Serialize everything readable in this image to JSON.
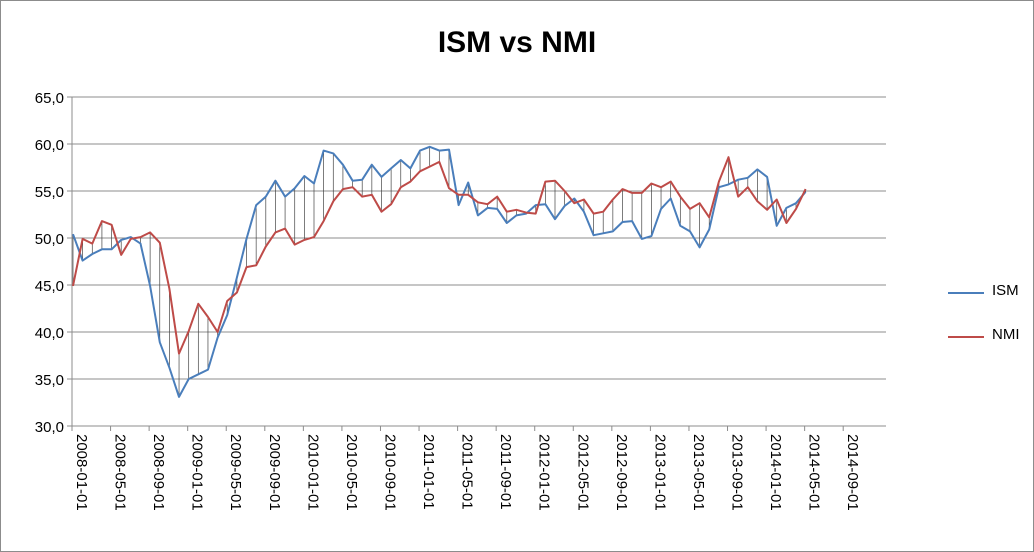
{
  "title": "ISM vs NMI",
  "chart_data": {
    "type": "line",
    "title": "ISM vs NMI",
    "xlabel": "",
    "ylabel": "",
    "ylim": [
      30,
      65
    ],
    "y_ticks": [
      "30,0",
      "35,0",
      "40,0",
      "45,0",
      "50,0",
      "55,0",
      "60,0",
      "65,0"
    ],
    "x_ticks": [
      "2008-01-01",
      "2008-05-01",
      "2008-09-01",
      "2009-01-01",
      "2009-05-01",
      "2009-09-01",
      "2010-01-01",
      "2010-05-01",
      "2010-09-01",
      "2011-01-01",
      "2011-05-01",
      "2011-09-01",
      "2012-01-01",
      "2012-05-01",
      "2012-09-01",
      "2013-01-01",
      "2013-05-01",
      "2013-09-01",
      "2014-01-01",
      "2014-05-01",
      "2014-09-01"
    ],
    "grid": true,
    "legend_position": "right",
    "hi_lo_lines": true,
    "x_start": "2008-01",
    "series": [
      {
        "name": "ISM",
        "color": "#4a7ebb",
        "values": [
          50.4,
          47.6,
          48.3,
          48.8,
          48.8,
          49.8,
          50.1,
          49.4,
          44.9,
          38.9,
          36.2,
          33.1,
          35.0,
          35.5,
          36.0,
          39.4,
          41.8,
          45.8,
          49.9,
          53.5,
          54.4,
          56.1,
          54.4,
          55.3,
          56.6,
          55.8,
          59.3,
          59.0,
          57.8,
          56.1,
          56.2,
          57.8,
          56.5,
          57.4,
          58.3,
          57.4,
          59.3,
          59.7,
          59.3,
          59.4,
          53.5,
          55.9,
          52.4,
          53.2,
          53.1,
          51.6,
          52.4,
          52.6,
          53.5,
          53.6,
          52.0,
          53.4,
          54.2,
          52.8,
          50.3,
          50.5,
          50.7,
          51.7,
          51.8,
          49.9,
          50.2,
          53.1,
          54.2,
          51.3,
          50.7,
          49.0,
          50.9,
          55.4,
          55.7,
          56.2,
          56.4,
          57.3,
          56.5,
          51.3,
          53.2,
          53.7,
          54.9
        ]
      },
      {
        "name": "NMI",
        "color": "#be4b48",
        "values": [
          44.9,
          49.9,
          49.4,
          51.8,
          51.4,
          48.2,
          49.9,
          50.1,
          50.6,
          49.5,
          44.6,
          37.7,
          40.1,
          43.0,
          41.6,
          40.0,
          43.3,
          44.2,
          46.9,
          47.1,
          49.1,
          50.6,
          51.0,
          49.3,
          49.8,
          50.1,
          51.8,
          53.9,
          55.2,
          55.4,
          54.4,
          54.6,
          52.8,
          53.6,
          55.4,
          56.0,
          57.1,
          57.6,
          58.1,
          55.3,
          54.6,
          54.6,
          53.8,
          53.6,
          54.4,
          52.8,
          53.0,
          52.7,
          52.6,
          56.0,
          56.1,
          55.0,
          53.7,
          54.1,
          52.6,
          52.8,
          54.1,
          55.2,
          54.8,
          54.8,
          55.8,
          55.4,
          56.0,
          54.4,
          53.1,
          53.7,
          52.2,
          56.0,
          58.6,
          54.4,
          55.4,
          53.9,
          53.0,
          54.1,
          51.6,
          53.1,
          55.2
        ]
      }
    ]
  }
}
